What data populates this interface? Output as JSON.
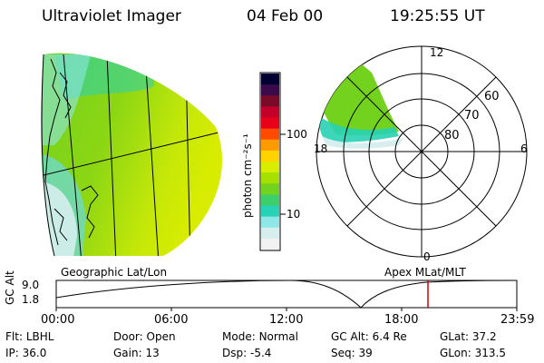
{
  "header": {
    "instrument": "Ultraviolet Imager",
    "date": "04 Feb 00",
    "time": "19:25:55 UT"
  },
  "colorbar": {
    "label": "photon cm⁻²s⁻¹",
    "ticks": [
      "100",
      "10"
    ],
    "colors": [
      "#000033",
      "#3b0a4a",
      "#7a0a2a",
      "#c2002a",
      "#e8001a",
      "#ff4a00",
      "#ff9a00",
      "#ffd200",
      "#d8ec00",
      "#a6e000",
      "#72d21e",
      "#3ccf6a",
      "#28d2b4",
      "#8ee6e6",
      "#d6eeee",
      "#f2f2f2"
    ]
  },
  "left_panel": {
    "caption": "Geographic Lat/Lon"
  },
  "right_panel": {
    "caption": "Apex  MLat/MLT",
    "mlt_labels": {
      "top": "12",
      "left": "18",
      "right": "6",
      "bottom": "0"
    },
    "lat_labels": [
      "60",
      "70",
      "80"
    ]
  },
  "altitude_plot": {
    "ylabel": "GC Alt",
    "yticks": [
      "9.0",
      "1.8"
    ],
    "xticks": [
      "00:00",
      "06:00",
      "12:00",
      "18:00",
      "23:59"
    ],
    "marker_color": "#cc0000"
  },
  "info": {
    "row1": [
      {
        "label": "Flt:",
        "value": "LBHL"
      },
      {
        "label": "Door:",
        "value": "Open"
      },
      {
        "label": "Mode:",
        "value": "Normal"
      },
      {
        "label": "GC Alt:",
        "value": "6.4 Re"
      },
      {
        "label": "GLat:",
        "value": "37.2"
      }
    ],
    "row2": [
      {
        "label": "IP:",
        "value": "36.0"
      },
      {
        "label": "Gain:",
        "value": "13"
      },
      {
        "label": "Dsp:",
        "value": "-5.4"
      },
      {
        "label": "Seq:",
        "value": "39"
      },
      {
        "label": "GLon:",
        "value": "313.5"
      }
    ]
  }
}
